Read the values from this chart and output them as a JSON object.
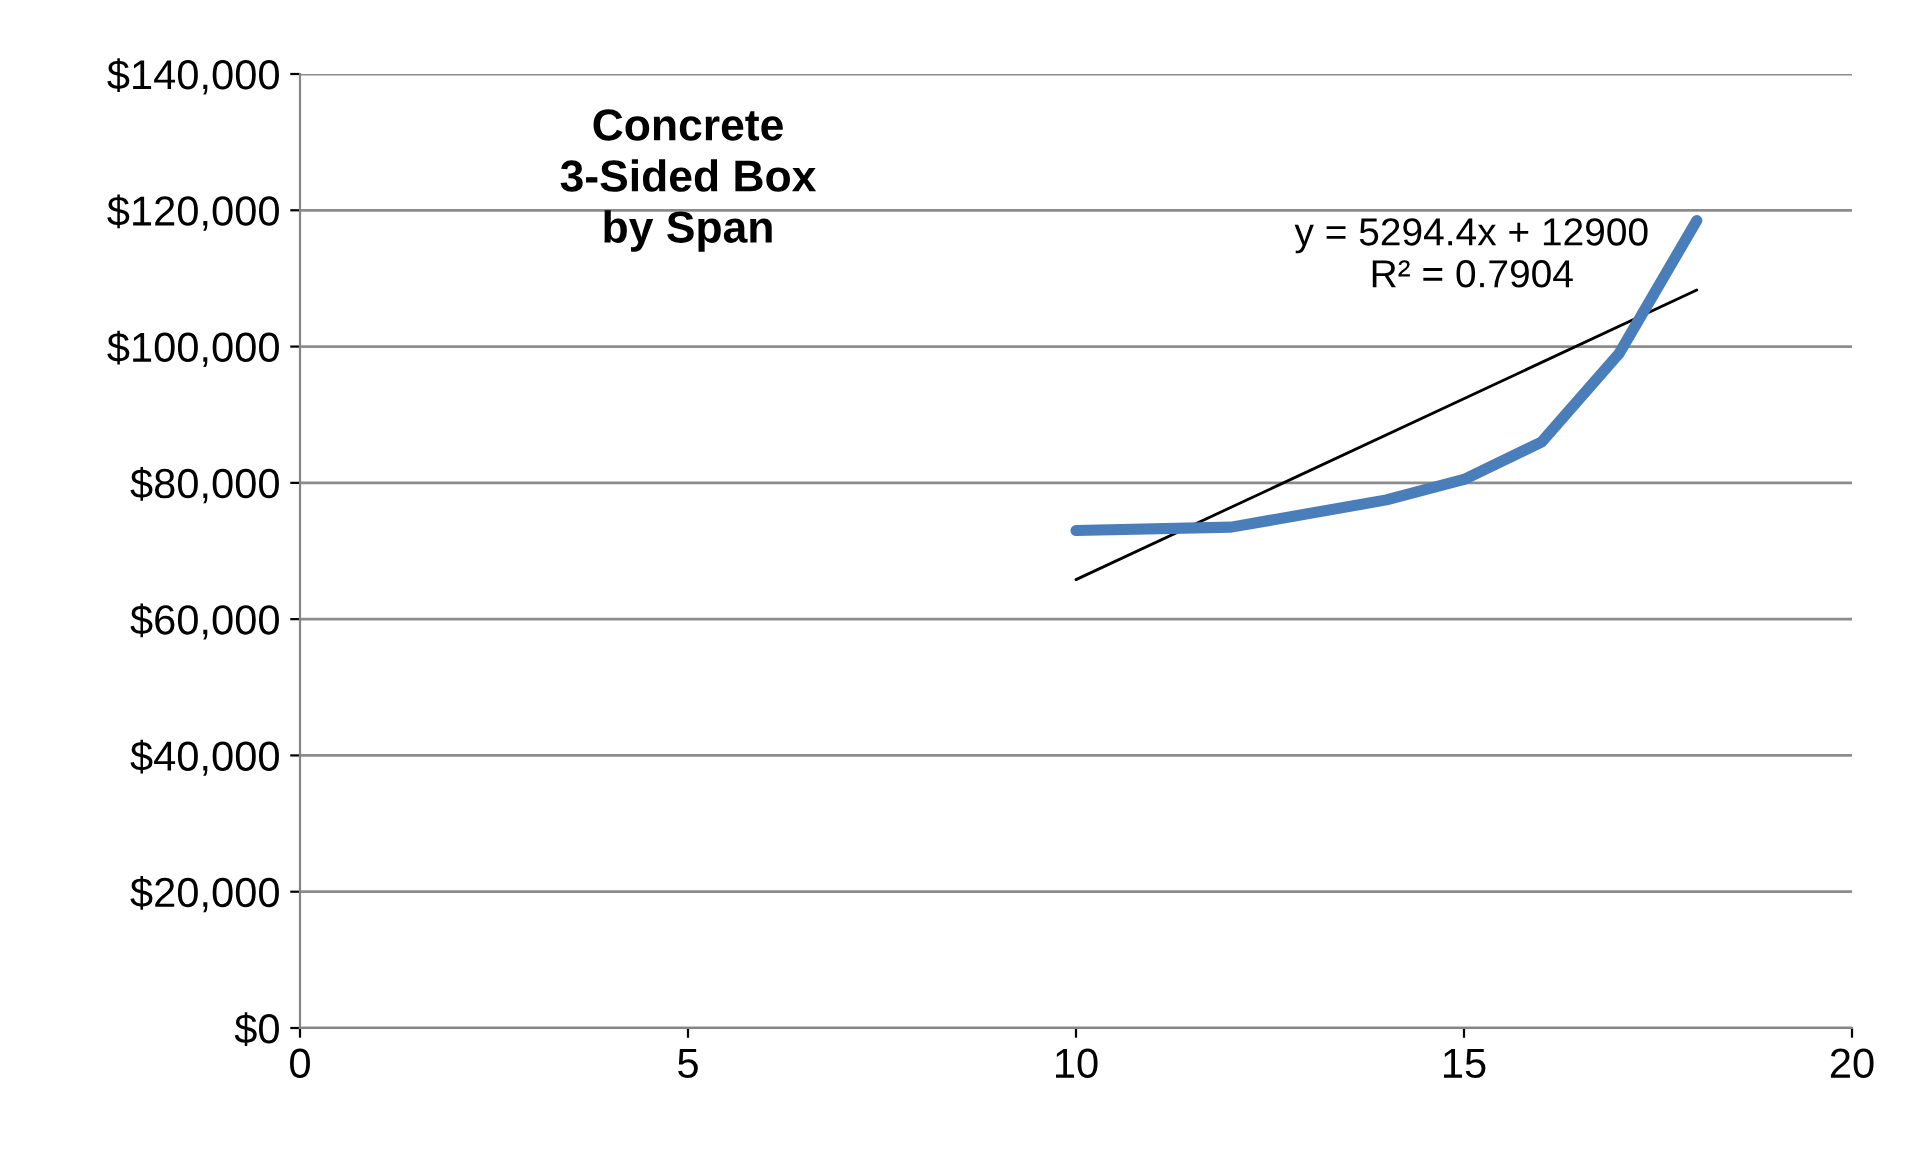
{
  "chart_data": {
    "type": "line",
    "title": "Concrete\n3-Sided Box\nby Span",
    "series": [
      {
        "color": "#4a7ebb",
        "x": [
          10,
          12,
          14,
          15,
          16,
          17,
          18
        ],
        "values": [
          73000,
          73500,
          77500,
          80500,
          86000,
          99000,
          118500
        ]
      },
      {
        "color": "#000000",
        "x": [
          10,
          18
        ],
        "values": [
          65800,
          108300
        ]
      }
    ],
    "annotations": [
      "y = 5294.4x + 12900\nR² = 0.7904"
    ],
    "xlim": [
      0,
      20
    ],
    "xticks": [
      0,
      5,
      10,
      15,
      20
    ],
    "ylim": [
      0,
      140000
    ],
    "yticks": [
      {
        "value": 0,
        "label": "$0"
      },
      {
        "value": 20000,
        "label": "$20,000"
      },
      {
        "value": 40000,
        "label": "$40,000"
      },
      {
        "value": 60000,
        "label": "$60,000"
      },
      {
        "value": 80000,
        "label": "$80,000"
      },
      {
        "value": 100000,
        "label": "$100,000"
      },
      {
        "value": 120000,
        "label": "$120,000"
      },
      {
        "value": 140000,
        "label": "$140,000"
      }
    ],
    "grid": "y",
    "legend": false
  }
}
